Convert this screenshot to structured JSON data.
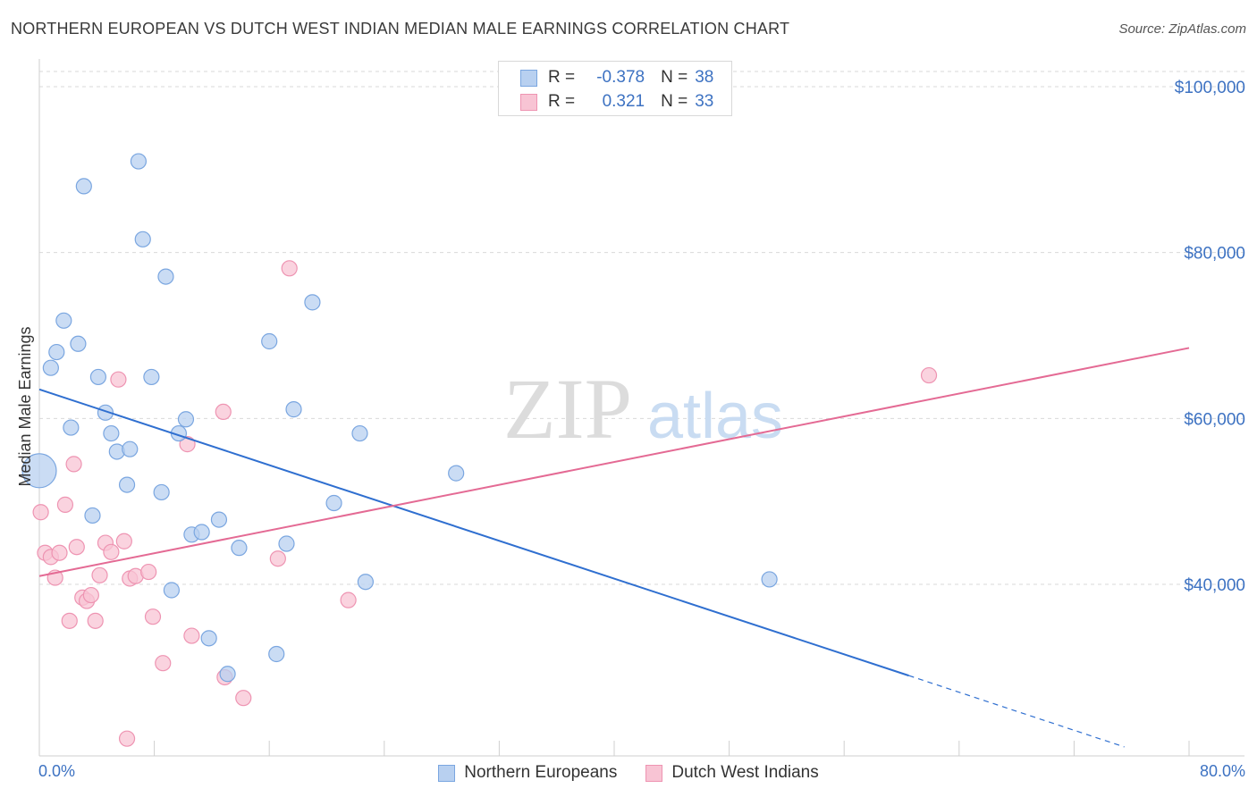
{
  "title": "NORTHERN EUROPEAN VS DUTCH WEST INDIAN MEDIAN MALE EARNINGS CORRELATION CHART",
  "source": "Source: ZipAtlas.com",
  "watermark": {
    "zip": "ZIP",
    "atlas": "atlas"
  },
  "legend": {
    "r_label": "R =",
    "n_label": "N =",
    "rows": [
      {
        "r": "-0.378",
        "n": "38"
      },
      {
        "r": "0.321",
        "n": "33"
      }
    ]
  },
  "colors": {
    "blue_fill": "#b8d0f0",
    "blue_stroke": "#7aa6e0",
    "blue_line": "#2f6fd0",
    "pink_fill": "#f8c4d4",
    "pink_stroke": "#ee94b2",
    "pink_line": "#e46a94",
    "axis_text": "#3d72c2",
    "grid": "#d9d9d9"
  },
  "chart_data": {
    "type": "scatter",
    "title": "NORTHERN EUROPEAN VS DUTCH WEST INDIAN MEDIAN MALE EARNINGS CORRELATION CHART",
    "xlabel": "",
    "ylabel": "Median Male Earnings",
    "xlim": [
      0,
      80
    ],
    "ylim": [
      20000,
      102000
    ],
    "x_tick_labels": [
      "0.0%",
      "80.0%"
    ],
    "y_ticks": [
      {
        "value": 40000,
        "label": "$40,000"
      },
      {
        "value": 60000,
        "label": "$60,000"
      },
      {
        "value": 80000,
        "label": "$80,000"
      },
      {
        "value": 100000,
        "label": "$100,000"
      }
    ],
    "series": [
      {
        "name": "Northern Europeans",
        "color": "blue",
        "r": -0.378,
        "n": 38,
        "trend": {
          "x0": 0,
          "y0": 63500,
          "x1": 60.5,
          "y1": 29000,
          "dash_to_x": 75.5,
          "dash_to_y": 20400
        },
        "points": [
          {
            "x": 0.0,
            "y": 53700,
            "big": true
          },
          {
            "x": 0.8,
            "y": 66100
          },
          {
            "x": 1.2,
            "y": 68000
          },
          {
            "x": 1.7,
            "y": 71800
          },
          {
            "x": 2.2,
            "y": 58900
          },
          {
            "x": 2.7,
            "y": 69000
          },
          {
            "x": 3.1,
            "y": 88000
          },
          {
            "x": 3.7,
            "y": 48300
          },
          {
            "x": 4.1,
            "y": 65000
          },
          {
            "x": 4.6,
            "y": 60700
          },
          {
            "x": 5.0,
            "y": 58200
          },
          {
            "x": 5.4,
            "y": 56000
          },
          {
            "x": 6.1,
            "y": 52000
          },
          {
            "x": 6.3,
            "y": 56300
          },
          {
            "x": 6.9,
            "y": 91000
          },
          {
            "x": 7.2,
            "y": 81600
          },
          {
            "x": 7.8,
            "y": 65000
          },
          {
            "x": 8.5,
            "y": 51100
          },
          {
            "x": 8.8,
            "y": 77100
          },
          {
            "x": 9.2,
            "y": 39300
          },
          {
            "x": 9.7,
            "y": 58200
          },
          {
            "x": 10.2,
            "y": 59900
          },
          {
            "x": 10.6,
            "y": 46000
          },
          {
            "x": 11.3,
            "y": 46300
          },
          {
            "x": 11.8,
            "y": 33500
          },
          {
            "x": 12.5,
            "y": 47800
          },
          {
            "x": 13.1,
            "y": 29200
          },
          {
            "x": 13.9,
            "y": 44400
          },
          {
            "x": 16.0,
            "y": 69300
          },
          {
            "x": 16.5,
            "y": 31600
          },
          {
            "x": 17.2,
            "y": 44900
          },
          {
            "x": 17.7,
            "y": 61100
          },
          {
            "x": 19.0,
            "y": 74000
          },
          {
            "x": 20.5,
            "y": 49800
          },
          {
            "x": 22.3,
            "y": 58200
          },
          {
            "x": 22.7,
            "y": 40300
          },
          {
            "x": 29.0,
            "y": 53400
          },
          {
            "x": 50.8,
            "y": 40600
          }
        ]
      },
      {
        "name": "Dutch West Indians",
        "color": "pink",
        "r": 0.321,
        "n": 33,
        "trend": {
          "x0": 0,
          "y0": 41000,
          "x1": 80,
          "y1": 68500
        },
        "points": [
          {
            "x": 0.1,
            "y": 48700
          },
          {
            "x": 0.4,
            "y": 43800
          },
          {
            "x": 0.8,
            "y": 43300
          },
          {
            "x": 1.1,
            "y": 40800
          },
          {
            "x": 1.4,
            "y": 43800
          },
          {
            "x": 1.8,
            "y": 49600
          },
          {
            "x": 2.1,
            "y": 35600
          },
          {
            "x": 2.4,
            "y": 54500
          },
          {
            "x": 2.6,
            "y": 44500
          },
          {
            "x": 3.0,
            "y": 38400
          },
          {
            "x": 3.3,
            "y": 38000
          },
          {
            "x": 3.6,
            "y": 38700
          },
          {
            "x": 3.9,
            "y": 35600
          },
          {
            "x": 4.2,
            "y": 41100
          },
          {
            "x": 4.6,
            "y": 45000
          },
          {
            "x": 5.0,
            "y": 43900
          },
          {
            "x": 5.5,
            "y": 64700
          },
          {
            "x": 5.9,
            "y": 45200
          },
          {
            "x": 6.1,
            "y": 21400
          },
          {
            "x": 6.3,
            "y": 40700
          },
          {
            "x": 6.7,
            "y": 41000
          },
          {
            "x": 7.6,
            "y": 41500
          },
          {
            "x": 7.9,
            "y": 36100
          },
          {
            "x": 8.6,
            "y": 30500
          },
          {
            "x": 10.3,
            "y": 56900
          },
          {
            "x": 10.6,
            "y": 33800
          },
          {
            "x": 12.8,
            "y": 60800
          },
          {
            "x": 12.9,
            "y": 28800
          },
          {
            "x": 14.2,
            "y": 26300
          },
          {
            "x": 16.6,
            "y": 43100
          },
          {
            "x": 17.4,
            "y": 78100
          },
          {
            "x": 21.5,
            "y": 38100
          },
          {
            "x": 61.9,
            "y": 65200
          }
        ]
      }
    ]
  }
}
